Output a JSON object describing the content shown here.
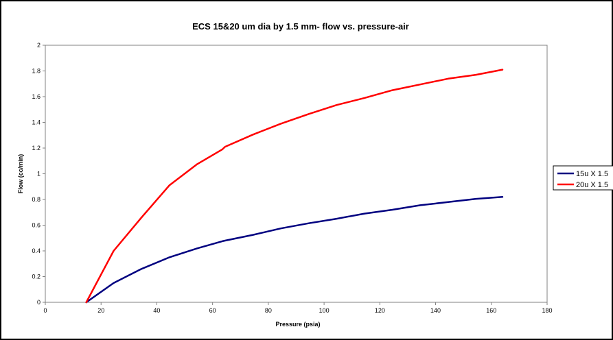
{
  "chart_data": {
    "type": "line",
    "title": "ECS 15&20 um dia by 1.5 mm- flow vs. pressure-air",
    "xlabel": "Pressure (psia)",
    "ylabel": "Flow (cc/min)",
    "xlim": [
      0,
      180
    ],
    "ylim": [
      0,
      2
    ],
    "xticks": [
      0,
      20,
      40,
      60,
      80,
      100,
      120,
      140,
      160,
      180
    ],
    "yticks": [
      0,
      0.2,
      0.4,
      0.6,
      0.8,
      1,
      1.2,
      1.4,
      1.6,
      1.8,
      2
    ],
    "xtick_labels": [
      "0",
      "20",
      "40",
      "60",
      "80",
      "100",
      "120",
      "140",
      "160",
      "180"
    ],
    "ytick_labels": [
      "0",
      "0.2",
      "0.4",
      "0.6",
      "0.8",
      "1",
      "1.2",
      "1.4",
      "1.6",
      "1.8",
      "2"
    ],
    "grid": false,
    "legend_position": "right",
    "series": [
      {
        "name": "15u X 1.5",
        "color": "#000080",
        "x": [
          14.7,
          24.5,
          34.5,
          44.5,
          54.5,
          63.5,
          64.5,
          74.5,
          84.5,
          94.5,
          104.5,
          114.5,
          124.5,
          134.5,
          144.5,
          154.5,
          164
        ],
        "y": [
          0,
          0.15,
          0.26,
          0.35,
          0.42,
          0.475,
          0.48,
          0.525,
          0.575,
          0.615,
          0.65,
          0.69,
          0.72,
          0.755,
          0.78,
          0.805,
          0.82
        ]
      },
      {
        "name": "20u X 1.5",
        "color": "#ff0000",
        "x": [
          14.7,
          24.5,
          34.5,
          44.5,
          54.5,
          63.5,
          64.5,
          74.5,
          84.5,
          94.5,
          104.5,
          114.5,
          124.5,
          134.5,
          144.5,
          154.5,
          164
        ],
        "y": [
          0,
          0.4,
          0.66,
          0.91,
          1.075,
          1.19,
          1.21,
          1.305,
          1.39,
          1.465,
          1.535,
          1.59,
          1.65,
          1.695,
          1.74,
          1.77,
          1.81
        ]
      }
    ]
  }
}
